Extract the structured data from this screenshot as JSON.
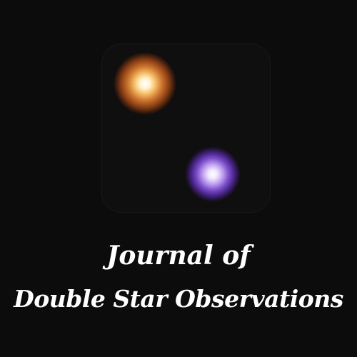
{
  "cover": {
    "title_line_1": "Journal of",
    "title_line_2": "Double Star Observations"
  },
  "artwork": {
    "primary_star_color": "#f7bf6a",
    "secondary_star_color": "#bfa0f0",
    "background_color": "#0d0c0d",
    "text_color": "#ffffff"
  }
}
